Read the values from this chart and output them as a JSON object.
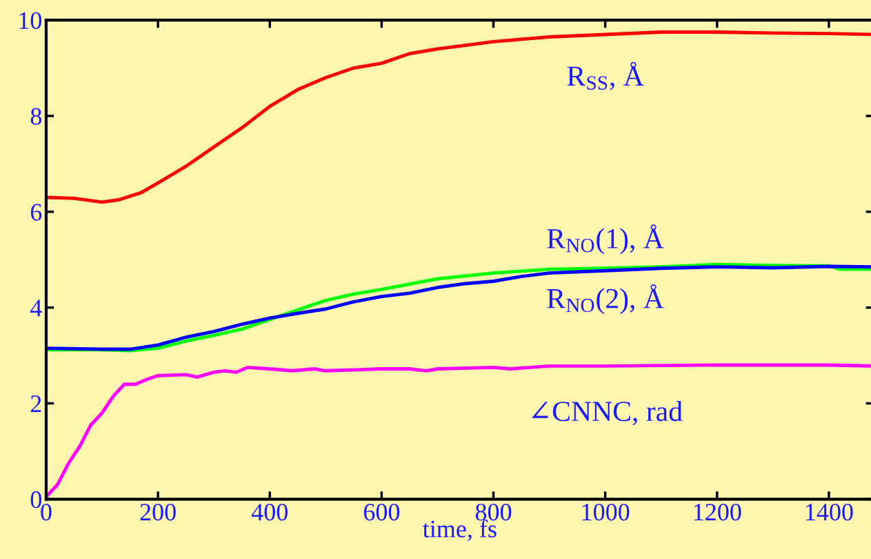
{
  "chart_data": {
    "type": "line",
    "xlabel": "time, fs",
    "xlim": [
      0,
      1480
    ],
    "xticks": [
      0,
      200,
      400,
      600,
      800,
      1000,
      1200,
      1400
    ],
    "ylim": [
      0,
      10
    ],
    "yticks": [
      0,
      2,
      4,
      6,
      8,
      10
    ],
    "grid": false,
    "legend": false,
    "marker": "none",
    "line_style": "solid",
    "series": [
      {
        "name": "R$_{SS}$, Å",
        "color": "#ff0000",
        "x": [
          0,
          50,
          100,
          130,
          170,
          200,
          250,
          300,
          350,
          400,
          450,
          500,
          550,
          600,
          650,
          700,
          800,
          900,
          1000,
          1100,
          1200,
          1300,
          1400,
          1480
        ],
        "values": [
          6.3,
          6.28,
          6.2,
          6.25,
          6.4,
          6.6,
          6.95,
          7.35,
          7.75,
          8.2,
          8.55,
          8.8,
          9.0,
          9.1,
          9.3,
          9.4,
          9.55,
          9.65,
          9.7,
          9.75,
          9.75,
          9.73,
          9.72,
          9.7
        ]
      },
      {
        "name": "R$_{NO}$(1), Å",
        "color": "#00ff00",
        "x": [
          0,
          100,
          150,
          200,
          250,
          300,
          350,
          400,
          450,
          500,
          550,
          600,
          700,
          800,
          900,
          1000,
          1100,
          1200,
          1300,
          1400,
          1420,
          1480
        ],
        "values": [
          3.12,
          3.12,
          3.1,
          3.15,
          3.3,
          3.42,
          3.55,
          3.75,
          3.95,
          4.15,
          4.28,
          4.38,
          4.6,
          4.72,
          4.8,
          4.82,
          4.85,
          4.9,
          4.88,
          4.87,
          4.8,
          4.8
        ]
      },
      {
        "name": "R$_{NO}$(2), Å",
        "color": "#0000ff",
        "x": [
          0,
          100,
          150,
          200,
          250,
          300,
          350,
          400,
          450,
          500,
          550,
          600,
          650,
          700,
          750,
          800,
          850,
          900,
          1000,
          1100,
          1200,
          1300,
          1400,
          1480
        ],
        "values": [
          3.15,
          3.13,
          3.13,
          3.22,
          3.38,
          3.5,
          3.65,
          3.78,
          3.88,
          3.97,
          4.12,
          4.23,
          4.3,
          4.42,
          4.5,
          4.55,
          4.65,
          4.72,
          4.77,
          4.82,
          4.85,
          4.83,
          4.86,
          4.85
        ]
      },
      {
        "name": "∠CNNC, rad",
        "color": "#ff00ff",
        "x": [
          0,
          20,
          40,
          60,
          80,
          100,
          120,
          140,
          160,
          180,
          200,
          250,
          270,
          300,
          320,
          340,
          360,
          400,
          440,
          480,
          500,
          600,
          650,
          680,
          700,
          800,
          830,
          900,
          1000,
          1200,
          1400,
          1480
        ],
        "values": [
          0.05,
          0.3,
          0.75,
          1.1,
          1.55,
          1.8,
          2.15,
          2.4,
          2.4,
          2.5,
          2.58,
          2.6,
          2.55,
          2.65,
          2.68,
          2.65,
          2.75,
          2.72,
          2.68,
          2.72,
          2.68,
          2.72,
          2.72,
          2.68,
          2.72,
          2.75,
          2.72,
          2.78,
          2.78,
          2.8,
          2.8,
          2.78
        ]
      }
    ]
  }
}
